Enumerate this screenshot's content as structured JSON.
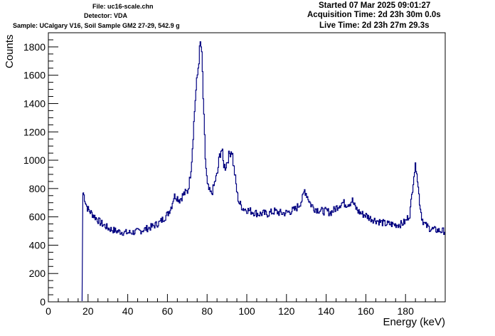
{
  "header": {
    "file": "File: uc16-scale.chn",
    "detector": "Detector: VDA",
    "sample": "Sample: UCalgary V16, Soil Sample GM2 27-29, 542.9 g",
    "started": "Started 07 Mar 2025 09:01:27",
    "acquisition": "Acquisition Time: 2d 23h 30m 0.0s",
    "live": "Live Time: 2d 23h 27m 29.3s"
  },
  "chart_data": {
    "type": "line",
    "title": "",
    "xlabel": "Energy (keV)",
    "ylabel": "Counts",
    "xlim": [
      0,
      200
    ],
    "ylim": [
      0,
      1900
    ],
    "x_ticks": [
      0,
      20,
      40,
      60,
      80,
      100,
      120,
      140,
      160,
      180
    ],
    "y_ticks": [
      0,
      200,
      400,
      600,
      800,
      1000,
      1200,
      1400,
      1600,
      1800
    ],
    "grid": false,
    "legend": "none",
    "line_color": "#000080",
    "series": [
      {
        "x": [
          17,
          17.4,
          18,
          19,
          20,
          22,
          24,
          26,
          28,
          30,
          32,
          34,
          36,
          38,
          40,
          42,
          44,
          46,
          48,
          50,
          52,
          54,
          56,
          58,
          60,
          62,
          63,
          64,
          66,
          68,
          70,
          71,
          72,
          73,
          74,
          75,
          76,
          76.5,
          77,
          77.5,
          78,
          79,
          80,
          81,
          82,
          83,
          84,
          85,
          86,
          87,
          87.5,
          88,
          89,
          90,
          91,
          92,
          92.5,
          93,
          94,
          95,
          96,
          97,
          98,
          100,
          102,
          104,
          106,
          108,
          110,
          112,
          114,
          116,
          118,
          120,
          122,
          124,
          126,
          128,
          129,
          130,
          132,
          134,
          136,
          138,
          140,
          142,
          144,
          146,
          148,
          150,
          152,
          153,
          154,
          156,
          158,
          160,
          162,
          164,
          166,
          168,
          170,
          172,
          174,
          176,
          178,
          180,
          182,
          183,
          184,
          185,
          185.5,
          186,
          187,
          188,
          189,
          190,
          192,
          194,
          196,
          198,
          200
        ],
        "y": [
          5,
          770,
          740,
          680,
          650,
          620,
          590,
          560,
          540,
          520,
          510,
          500,
          495,
          490,
          488,
          490,
          495,
          500,
          510,
          520,
          530,
          545,
          560,
          590,
          620,
          680,
          740,
          750,
          720,
          760,
          780,
          850,
          980,
          1220,
          1450,
          1600,
          1760,
          1830,
          1780,
          1620,
          1380,
          1000,
          820,
          780,
          760,
          800,
          860,
          900,
          1020,
          1080,
          1060,
          980,
          950,
          990,
          1040,
          1070,
          1060,
          980,
          880,
          760,
          700,
          680,
          660,
          650,
          640,
          630,
          620,
          625,
          620,
          630,
          640,
          630,
          625,
          630,
          640,
          650,
          680,
          730,
          790,
          760,
          690,
          660,
          650,
          640,
          640,
          630,
          650,
          680,
          700,
          690,
          700,
          720,
          680,
          640,
          620,
          610,
          590,
          580,
          570,
          560,
          550,
          550,
          545,
          545,
          550,
          570,
          620,
          750,
          900,
          960,
          940,
          840,
          700,
          600,
          560,
          540,
          520,
          510,
          505,
          500,
          500
        ]
      }
    ]
  }
}
